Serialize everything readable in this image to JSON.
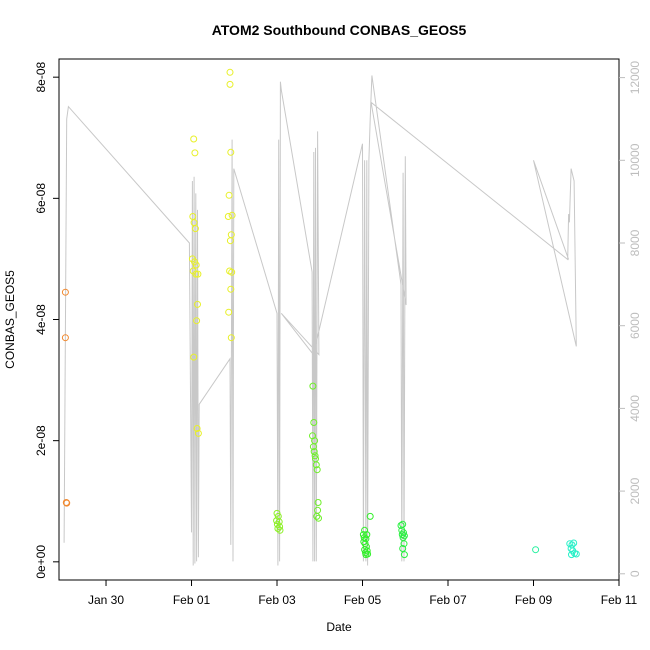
{
  "chart_data": {
    "type": "scatter",
    "title": "ATOM2 Southbound CONBAS_GEOS5",
    "xlabel": "Date",
    "ylabel": "CONBAS_GEOS5",
    "x_unit": "days since 2017-01-28 00:00",
    "x_range": [
      28.9,
      42.0
    ],
    "ylim": [
      -3e-09,
      8.3e-08
    ],
    "y2lim": [
      -150,
      12450
    ],
    "x_ticks": [
      {
        "x": 30,
        "label": "Jan 30"
      },
      {
        "x": 32,
        "label": "Feb 01"
      },
      {
        "x": 34,
        "label": "Feb 03"
      },
      {
        "x": 36,
        "label": "Feb 05"
      },
      {
        "x": 38,
        "label": "Feb 07"
      },
      {
        "x": 40,
        "label": "Feb 09"
      },
      {
        "x": 42,
        "label": "Feb 11"
      }
    ],
    "y_ticks": [
      {
        "y": 0,
        "label": "0e+00"
      },
      {
        "y": 2e-08,
        "label": "2e-08"
      },
      {
        "y": 4e-08,
        "label": "4e-08"
      },
      {
        "y": 6e-08,
        "label": "6e-08"
      },
      {
        "y": 8e-08,
        "label": "8e-08"
      }
    ],
    "y2_ticks": [
      {
        "y": 0,
        "label": "0"
      },
      {
        "y": 2000,
        "label": "2000"
      },
      {
        "y": 4000,
        "label": "4000"
      },
      {
        "y": 6000,
        "label": "6000"
      },
      {
        "y": 8000,
        "label": "8000"
      },
      {
        "y": 10000,
        "label": "10000"
      },
      {
        "y": 12000,
        "label": "12000"
      }
    ],
    "series": [
      {
        "axis": "left",
        "mark": "circle",
        "points": [
          {
            "x": 29.05,
            "y": 4.45e-08,
            "color": "#f28a30"
          },
          {
            "x": 29.05,
            "y": 3.7e-08,
            "color": "#f28a30"
          },
          {
            "x": 29.07,
            "y": 9.8e-09,
            "color": "#f28a30"
          },
          {
            "x": 29.08,
            "y": 9.7e-09,
            "color": "#f28a30"
          },
          {
            "x": 32.05,
            "y": 6.98e-08,
            "color": "#e8f028"
          },
          {
            "x": 32.08,
            "y": 6.75e-08,
            "color": "#e8f028"
          },
          {
            "x": 32.03,
            "y": 5.7e-08,
            "color": "#e8f028"
          },
          {
            "x": 32.06,
            "y": 5.6e-08,
            "color": "#e8f028"
          },
          {
            "x": 32.09,
            "y": 5.5e-08,
            "color": "#e8f028"
          },
          {
            "x": 32.02,
            "y": 5e-08,
            "color": "#e8f028"
          },
          {
            "x": 32.07,
            "y": 4.95e-08,
            "color": "#e8f028"
          },
          {
            "x": 32.11,
            "y": 4.9e-08,
            "color": "#e8f028"
          },
          {
            "x": 32.04,
            "y": 4.8e-08,
            "color": "#e8f028"
          },
          {
            "x": 32.1,
            "y": 4.75e-08,
            "color": "#e8f028"
          },
          {
            "x": 32.15,
            "y": 4.75e-08,
            "color": "#e8f028"
          },
          {
            "x": 32.14,
            "y": 4.25e-08,
            "color": "#e8f028"
          },
          {
            "x": 32.12,
            "y": 3.98e-08,
            "color": "#e8f028"
          },
          {
            "x": 32.05,
            "y": 3.38e-08,
            "color": "#e8f028"
          },
          {
            "x": 32.13,
            "y": 2.2e-08,
            "color": "#e8f028"
          },
          {
            "x": 32.16,
            "y": 2.12e-08,
            "color": "#e8f028"
          },
          {
            "x": 32.9,
            "y": 8.08e-08,
            "color": "#e8f028"
          },
          {
            "x": 32.9,
            "y": 7.88e-08,
            "color": "#e8f028"
          },
          {
            "x": 32.92,
            "y": 6.76e-08,
            "color": "#e8f028"
          },
          {
            "x": 32.88,
            "y": 6.05e-08,
            "color": "#e8f028"
          },
          {
            "x": 32.95,
            "y": 5.72e-08,
            "color": "#e8f028"
          },
          {
            "x": 32.86,
            "y": 5.7e-08,
            "color": "#e8f028"
          },
          {
            "x": 32.93,
            "y": 5.4e-08,
            "color": "#e8f028"
          },
          {
            "x": 32.91,
            "y": 5.3e-08,
            "color": "#e8f028"
          },
          {
            "x": 32.89,
            "y": 4.8e-08,
            "color": "#e8f028"
          },
          {
            "x": 32.94,
            "y": 4.78e-08,
            "color": "#e8f028"
          },
          {
            "x": 32.92,
            "y": 4.5e-08,
            "color": "#e8f028"
          },
          {
            "x": 32.87,
            "y": 4.12e-08,
            "color": "#e8f028"
          },
          {
            "x": 32.93,
            "y": 3.7e-08,
            "color": "#e8f028"
          },
          {
            "x": 34.0,
            "y": 8e-09,
            "color": "#8ef028"
          },
          {
            "x": 34.03,
            "y": 7.5e-09,
            "color": "#8ef028"
          },
          {
            "x": 33.99,
            "y": 6.8e-09,
            "color": "#8ef028"
          },
          {
            "x": 34.05,
            "y": 6.6e-09,
            "color": "#8ef028"
          },
          {
            "x": 34.01,
            "y": 6.2e-09,
            "color": "#8ef028"
          },
          {
            "x": 34.06,
            "y": 5.8e-09,
            "color": "#8ef028"
          },
          {
            "x": 34.02,
            "y": 5.5e-09,
            "color": "#8ef028"
          },
          {
            "x": 34.07,
            "y": 5.2e-09,
            "color": "#8ef028"
          },
          {
            "x": 34.84,
            "y": 2.9e-08,
            "color": "#6ef028"
          },
          {
            "x": 34.86,
            "y": 2.3e-08,
            "color": "#6ef028"
          },
          {
            "x": 34.83,
            "y": 2.08e-08,
            "color": "#6ef028"
          },
          {
            "x": 34.88,
            "y": 2e-08,
            "color": "#6ef028"
          },
          {
            "x": 34.85,
            "y": 1.9e-08,
            "color": "#6ef028"
          },
          {
            "x": 34.87,
            "y": 1.82e-08,
            "color": "#6ef028"
          },
          {
            "x": 34.89,
            "y": 1.75e-08,
            "color": "#6ef028"
          },
          {
            "x": 34.9,
            "y": 1.7e-08,
            "color": "#6ef028"
          },
          {
            "x": 34.92,
            "y": 1.6e-08,
            "color": "#6ef028"
          },
          {
            "x": 34.94,
            "y": 1.52e-08,
            "color": "#6ef028"
          },
          {
            "x": 34.96,
            "y": 9.8e-09,
            "color": "#6ef028"
          },
          {
            "x": 34.95,
            "y": 8.5e-09,
            "color": "#6ef028"
          },
          {
            "x": 34.93,
            "y": 7.5e-09,
            "color": "#6ef028"
          },
          {
            "x": 34.97,
            "y": 7.2e-09,
            "color": "#6ef028"
          },
          {
            "x": 36.05,
            "y": 5.2e-09,
            "color": "#30f028"
          },
          {
            "x": 36.02,
            "y": 4.5e-09,
            "color": "#30f028"
          },
          {
            "x": 36.1,
            "y": 4.5e-09,
            "color": "#30f028"
          },
          {
            "x": 36.04,
            "y": 4e-09,
            "color": "#30f028"
          },
          {
            "x": 36.08,
            "y": 3.8e-09,
            "color": "#30f028"
          },
          {
            "x": 36.03,
            "y": 3.3e-09,
            "color": "#30f028"
          },
          {
            "x": 36.06,
            "y": 3e-09,
            "color": "#30f028"
          },
          {
            "x": 36.09,
            "y": 2.5e-09,
            "color": "#30f028"
          },
          {
            "x": 36.05,
            "y": 2e-09,
            "color": "#30f028"
          },
          {
            "x": 36.11,
            "y": 1.8e-09,
            "color": "#30f028"
          },
          {
            "x": 36.07,
            "y": 1.5e-09,
            "color": "#30f028"
          },
          {
            "x": 36.12,
            "y": 1.3e-09,
            "color": "#30f028"
          },
          {
            "x": 36.08,
            "y": 1.2e-09,
            "color": "#30f028"
          },
          {
            "x": 36.18,
            "y": 7.5e-09,
            "color": "#30f028"
          },
          {
            "x": 36.9,
            "y": 6e-09,
            "color": "#28f040"
          },
          {
            "x": 36.94,
            "y": 6.2e-09,
            "color": "#28f040"
          },
          {
            "x": 36.92,
            "y": 5.2e-09,
            "color": "#28f040"
          },
          {
            "x": 36.96,
            "y": 4.8e-09,
            "color": "#28f040"
          },
          {
            "x": 36.93,
            "y": 4.5e-09,
            "color": "#28f040"
          },
          {
            "x": 36.98,
            "y": 4.3e-09,
            "color": "#28f040"
          },
          {
            "x": 36.95,
            "y": 4e-09,
            "color": "#28f040"
          },
          {
            "x": 36.97,
            "y": 3e-09,
            "color": "#28f040"
          },
          {
            "x": 36.94,
            "y": 2.2e-09,
            "color": "#28f040"
          },
          {
            "x": 36.98,
            "y": 1.2e-09,
            "color": "#28f040"
          },
          {
            "x": 40.05,
            "y": 2e-09,
            "color": "#28f0a0"
          },
          {
            "x": 40.85,
            "y": 3e-09,
            "color": "#28f0c8"
          },
          {
            "x": 40.9,
            "y": 2.8e-09,
            "color": "#28f0c8"
          },
          {
            "x": 40.94,
            "y": 3.1e-09,
            "color": "#28f0c8"
          },
          {
            "x": 40.88,
            "y": 2.2e-09,
            "color": "#28f0c8"
          },
          {
            "x": 40.92,
            "y": 1.8e-09,
            "color": "#28f0c8"
          },
          {
            "x": 40.96,
            "y": 1.4e-09,
            "color": "#28f0c8"
          },
          {
            "x": 40.89,
            "y": 1.2e-09,
            "color": "#28f0c8"
          },
          {
            "x": 41.0,
            "y": 1.3e-09,
            "color": "#28f0c8"
          }
        ]
      },
      {
        "axis": "right",
        "mark": "line",
        "color": "#c8c8c8",
        "points": [
          [
            29.02,
            750
          ],
          [
            29.08,
            11000
          ],
          [
            29.12,
            11300
          ],
          [
            31.95,
            8000
          ],
          [
            32.0,
            1000
          ],
          [
            32.02,
            9500
          ],
          [
            32.04,
            200
          ],
          [
            32.06,
            9600
          ],
          [
            32.08,
            250
          ],
          [
            32.1,
            9200
          ],
          [
            32.12,
            300
          ],
          [
            32.14,
            8800
          ],
          [
            32.16,
            400
          ],
          [
            32.18,
            4100
          ],
          [
            32.9,
            5200
          ],
          [
            32.92,
            700
          ],
          [
            32.95,
            10500
          ],
          [
            32.97,
            300
          ],
          [
            32.99,
            9800
          ],
          [
            34.0,
            6300
          ],
          [
            34.02,
            200
          ],
          [
            34.04,
            10500
          ],
          [
            34.06,
            300
          ],
          [
            34.08,
            11900
          ],
          [
            34.1,
            11700
          ],
          [
            34.82,
            7300
          ],
          [
            34.84,
            300
          ],
          [
            34.86,
            10200
          ],
          [
            34.88,
            300
          ],
          [
            34.9,
            10300
          ],
          [
            34.92,
            300
          ],
          [
            34.95,
            10700
          ],
          [
            34.98,
            5300
          ],
          [
            34.1,
            6300
          ],
          [
            34.85,
            5300
          ],
          [
            36.0,
            10400
          ],
          [
            36.02,
            300
          ],
          [
            36.05,
            10000
          ],
          [
            36.08,
            300
          ],
          [
            36.1,
            10000
          ],
          [
            36.12,
            200
          ],
          [
            36.15,
            10000
          ],
          [
            36.18,
            11000
          ],
          [
            36.22,
            12050
          ],
          [
            36.9,
            7000
          ],
          [
            36.92,
            300
          ],
          [
            36.95,
            9700
          ],
          [
            36.97,
            300
          ],
          [
            37.0,
            10100
          ],
          [
            37.02,
            6500
          ],
          [
            36.2,
            11400
          ],
          [
            40.8,
            7600
          ],
          [
            40.82,
            8700
          ],
          [
            40.84,
            8500
          ],
          [
            40.88,
            9800
          ],
          [
            40.95,
            9500
          ],
          [
            41.0,
            5500
          ],
          [
            40.0,
            10000
          ],
          [
            40.82,
            7600
          ]
        ]
      }
    ]
  }
}
